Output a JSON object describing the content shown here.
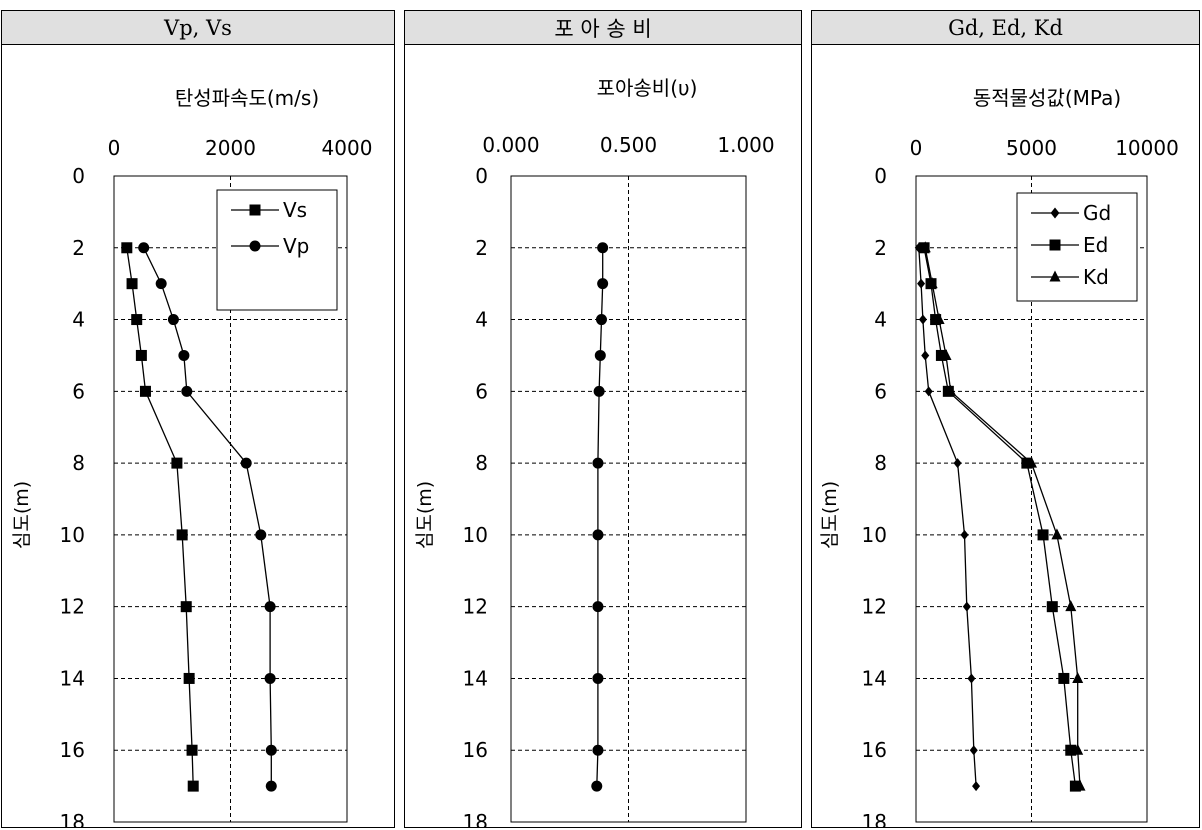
{
  "panels": [
    {
      "header": "Vp, Vs"
    },
    {
      "header": "포 아 송 비"
    },
    {
      "header": "Gd, Ed, Kd"
    }
  ],
  "chart_data": [
    {
      "type": "line",
      "title": "탄성파속도(m/s)",
      "ylabel": "심도(m)",
      "xlim": [
        0,
        4000
      ],
      "ylim": [
        0,
        18
      ],
      "y_inverted": true,
      "x_ticks": [
        "0",
        "2000",
        "4000"
      ],
      "y_ticks": [
        "0",
        "2",
        "4",
        "6",
        "8",
        "10",
        "12",
        "14",
        "16",
        "18"
      ],
      "grid": "dashed",
      "legend": "top-right",
      "series": [
        {
          "name": "Vs",
          "marker": "square",
          "points": [
            [
              220,
              2
            ],
            [
              310,
              3
            ],
            [
              390,
              4
            ],
            [
              470,
              5
            ],
            [
              540,
              6
            ],
            [
              1080,
              8
            ],
            [
              1170,
              10
            ],
            [
              1240,
              12
            ],
            [
              1290,
              14
            ],
            [
              1340,
              16
            ],
            [
              1360,
              17
            ]
          ]
        },
        {
          "name": "Vp",
          "marker": "circle",
          "points": [
            [
              510,
              2
            ],
            [
              810,
              3
            ],
            [
              1020,
              4
            ],
            [
              1200,
              5
            ],
            [
              1250,
              6
            ],
            [
              2270,
              8
            ],
            [
              2520,
              10
            ],
            [
              2680,
              12
            ],
            [
              2680,
              14
            ],
            [
              2700,
              16
            ],
            [
              2700,
              17
            ]
          ]
        }
      ]
    },
    {
      "type": "line",
      "title": "포아송비(υ)",
      "ylabel": "심도(m)",
      "xlim": [
        0,
        1
      ],
      "ylim": [
        0,
        18
      ],
      "y_inverted": true,
      "x_ticks": [
        "0.000",
        "0.500",
        "1.000"
      ],
      "y_ticks": [
        "0",
        "2",
        "4",
        "6",
        "8",
        "10",
        "12",
        "14",
        "16",
        "18"
      ],
      "grid": "dashed",
      "series": [
        {
          "name": "",
          "marker": "circle",
          "points": [
            [
              0.39,
              2
            ],
            [
              0.39,
              3
            ],
            [
              0.385,
              4
            ],
            [
              0.38,
              5
            ],
            [
              0.375,
              6
            ],
            [
              0.37,
              8
            ],
            [
              0.37,
              10
            ],
            [
              0.37,
              12
            ],
            [
              0.37,
              14
            ],
            [
              0.37,
              16
            ],
            [
              0.365,
              17
            ]
          ]
        }
      ]
    },
    {
      "type": "line",
      "title": "동적물성값(MPa)",
      "ylabel": "심도(m)",
      "xlim": [
        0,
        10000
      ],
      "ylim": [
        0,
        18
      ],
      "y_inverted": true,
      "x_ticks": [
        "0",
        "5000",
        "10000"
      ],
      "y_ticks": [
        "0",
        "2",
        "4",
        "6",
        "8",
        "10",
        "12",
        "14",
        "16",
        "18"
      ],
      "grid": "dashed",
      "legend": "top-right",
      "series": [
        {
          "name": "Gd",
          "marker": "diamond",
          "points": [
            [
              120,
              2
            ],
            [
              220,
              3
            ],
            [
              300,
              4
            ],
            [
              400,
              5
            ],
            [
              550,
              6
            ],
            [
              1800,
              8
            ],
            [
              2100,
              10
            ],
            [
              2200,
              12
            ],
            [
              2400,
              14
            ],
            [
              2500,
              16
            ],
            [
              2600,
              17
            ]
          ]
        },
        {
          "name": "Ed",
          "marker": "square",
          "points": [
            [
              350,
              2
            ],
            [
              650,
              3
            ],
            [
              850,
              4
            ],
            [
              1100,
              5
            ],
            [
              1400,
              6
            ],
            [
              4800,
              8
            ],
            [
              5500,
              10
            ],
            [
              5900,
              12
            ],
            [
              6400,
              14
            ],
            [
              6700,
              16
            ],
            [
              6900,
              17
            ]
          ]
        },
        {
          "name": "Kd",
          "marker": "triangle",
          "points": [
            [
              400,
              2
            ],
            [
              700,
              3
            ],
            [
              1000,
              4
            ],
            [
              1300,
              5
            ],
            [
              1500,
              6
            ],
            [
              5000,
              8
            ],
            [
              6100,
              10
            ],
            [
              6700,
              12
            ],
            [
              7000,
              14
            ],
            [
              7000,
              16
            ],
            [
              7100,
              17
            ]
          ]
        }
      ]
    }
  ]
}
